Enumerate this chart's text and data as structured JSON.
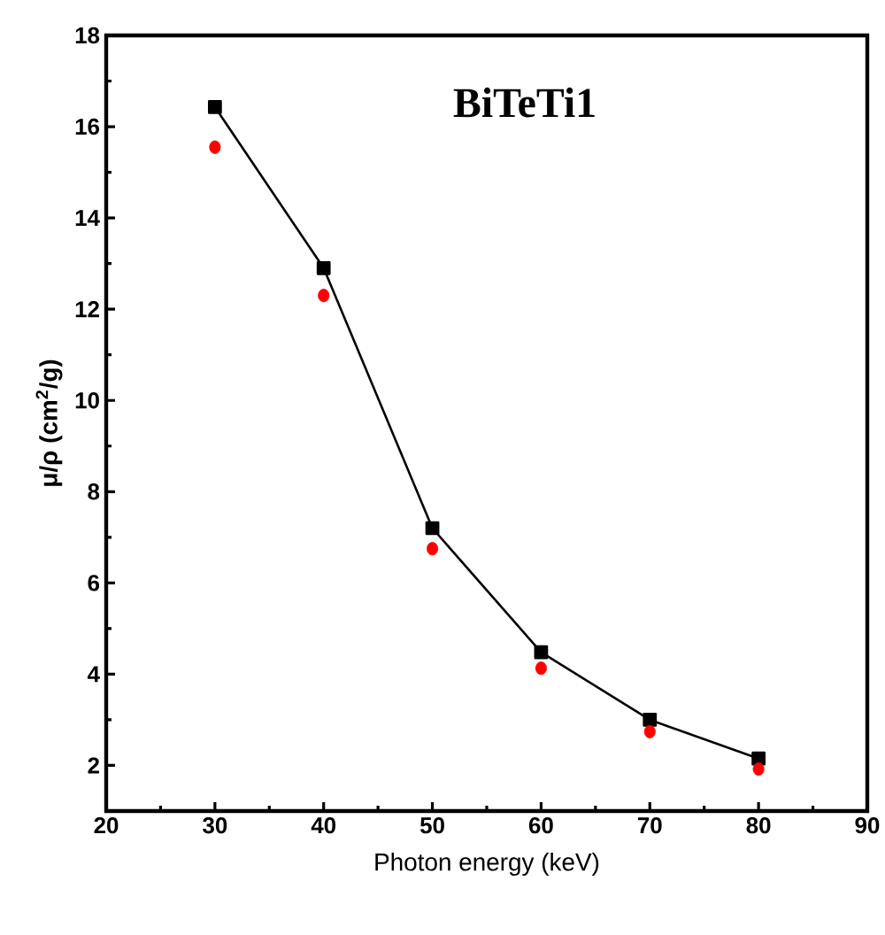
{
  "chart_data": {
    "type": "line",
    "title": "BiTeTi1",
    "xlabel": "Photon energy (keV)",
    "ylabel": "μ/ρ (cm$^{2}$/g)",
    "x": [
      30,
      40,
      50,
      60,
      70,
      80
    ],
    "series": [
      {
        "color": "#000000",
        "marker": "square",
        "values": [
          16.43,
          12.9,
          7.2,
          4.48,
          3.0,
          2.15
        ]
      },
      {
        "type": "scatter",
        "color": "#ff0000",
        "marker": "circle",
        "values": [
          15.55,
          12.3,
          6.75,
          4.13,
          2.74,
          1.92
        ]
      }
    ],
    "xlim": [
      20,
      90
    ],
    "xticks": [
      20,
      30,
      40,
      50,
      60,
      70,
      80,
      90
    ],
    "ylim": [
      1,
      18
    ],
    "yticks": [
      2,
      4,
      6,
      8,
      10,
      12,
      14,
      16,
      18
    ],
    "grid": false
  }
}
